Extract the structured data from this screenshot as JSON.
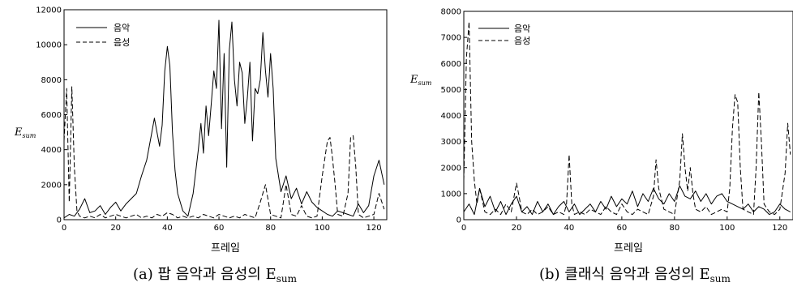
{
  "chart_data": [
    {
      "type": "line",
      "caption": "(a) 팝 음악과 음성의 E",
      "caption_sub": "sum",
      "xlabel": "프레임",
      "ylabel": "E",
      "ylabel_sub": "sum",
      "xlim": [
        0,
        125
      ],
      "ylim": [
        0,
        12000
      ],
      "x_ticks": [
        0,
        20,
        40,
        60,
        80,
        100,
        120
      ],
      "y_ticks": [
        0,
        2000,
        4000,
        6000,
        8000,
        10000,
        12000
      ],
      "legend_position": "top-left",
      "series": [
        {
          "name": "음악",
          "style": "solid",
          "x": [
            0,
            2,
            4,
            6,
            8,
            10,
            12,
            14,
            16,
            18,
            20,
            22,
            24,
            26,
            28,
            30,
            32,
            34,
            35,
            36,
            37,
            38,
            39,
            40,
            41,
            42,
            43,
            44,
            46,
            48,
            50,
            52,
            53,
            54,
            55,
            56,
            57,
            58,
            59,
            60,
            61,
            62,
            63,
            64,
            65,
            66,
            67,
            68,
            69,
            70,
            71,
            72,
            73,
            74,
            75,
            76,
            77,
            78,
            79,
            80,
            81,
            82,
            84,
            86,
            88,
            90,
            92,
            94,
            96,
            98,
            100,
            102,
            104,
            106,
            108,
            110,
            112,
            114,
            116,
            118,
            120,
            122,
            124
          ],
          "y": [
            100,
            300,
            200,
            600,
            1200,
            400,
            500,
            800,
            300,
            700,
            1000,
            500,
            900,
            1200,
            1500,
            2500,
            3400,
            5000,
            5800,
            5000,
            4200,
            5400,
            8500,
            9900,
            8800,
            5000,
            2800,
            1500,
            500,
            200,
            1500,
            4000,
            5500,
            3800,
            6500,
            4800,
            6600,
            8500,
            7500,
            11400,
            5200,
            9500,
            3000,
            9700,
            11300,
            8000,
            6500,
            9000,
            8400,
            5500,
            7000,
            9000,
            4500,
            7500,
            7200,
            8000,
            10700,
            8500,
            7000,
            9500,
            7500,
            3500,
            1600,
            2500,
            1200,
            1800,
            900,
            1600,
            1000,
            700,
            500,
            300,
            200,
            500,
            400,
            300,
            200,
            900,
            400,
            800,
            2500,
            3400,
            2000
          ]
        },
        {
          "name": "음성",
          "style": "dashed",
          "x": [
            0,
            1,
            2,
            3,
            4,
            5,
            6,
            8,
            10,
            12,
            14,
            16,
            18,
            20,
            22,
            24,
            26,
            28,
            30,
            32,
            34,
            36,
            38,
            40,
            42,
            44,
            46,
            48,
            50,
            52,
            54,
            56,
            58,
            60,
            62,
            64,
            66,
            68,
            70,
            72,
            74,
            76,
            78,
            80,
            82,
            84,
            86,
            88,
            90,
            92,
            94,
            96,
            98,
            100,
            102,
            103,
            104,
            105,
            106,
            108,
            110,
            111,
            112,
            113,
            114,
            116,
            118,
            120,
            122,
            124
          ],
          "y": [
            4500,
            7500,
            1000,
            7600,
            3000,
            500,
            200,
            100,
            200,
            100,
            300,
            100,
            200,
            300,
            200,
            100,
            200,
            300,
            100,
            200,
            100,
            300,
            200,
            400,
            300,
            100,
            200,
            100,
            200,
            100,
            300,
            200,
            100,
            300,
            200,
            100,
            200,
            100,
            300,
            200,
            100,
            1000,
            2000,
            300,
            200,
            100,
            2000,
            300,
            200,
            800,
            200,
            100,
            200,
            2500,
            4500,
            4700,
            3500,
            2000,
            300,
            200,
            1500,
            4700,
            4800,
            3000,
            300,
            100,
            200,
            300,
            1500,
            600
          ]
        }
      ]
    },
    {
      "type": "line",
      "caption": "(b) 클래식 음악과 음성의 E",
      "caption_sub": "sum",
      "xlabel": "프레임",
      "ylabel": "E",
      "ylabel_sub": "sum",
      "xlim": [
        0,
        125
      ],
      "ylim": [
        0,
        8000
      ],
      "x_ticks": [
        0,
        20,
        40,
        60,
        80,
        100,
        120
      ],
      "y_ticks": [
        0,
        1000,
        2000,
        3000,
        4000,
        5000,
        6000,
        7000,
        8000
      ],
      "legend_position": "top-left",
      "series": [
        {
          "name": "음악",
          "style": "solid",
          "x": [
            0,
            2,
            4,
            6,
            8,
            10,
            12,
            14,
            16,
            18,
            20,
            22,
            24,
            26,
            28,
            30,
            32,
            34,
            36,
            38,
            40,
            42,
            44,
            46,
            48,
            50,
            52,
            54,
            56,
            58,
            60,
            62,
            64,
            66,
            68,
            70,
            72,
            74,
            76,
            78,
            80,
            82,
            84,
            86,
            88,
            90,
            92,
            94,
            96,
            98,
            100,
            102,
            104,
            106,
            108,
            110,
            112,
            114,
            116,
            118,
            120,
            122,
            124
          ],
          "y": [
            300,
            600,
            200,
            1200,
            500,
            900,
            300,
            700,
            200,
            600,
            900,
            300,
            500,
            200,
            700,
            300,
            600,
            200,
            500,
            700,
            300,
            600,
            200,
            400,
            600,
            300,
            700,
            400,
            900,
            500,
            800,
            600,
            1100,
            500,
            1000,
            700,
            1200,
            800,
            600,
            1000,
            700,
            1300,
            900,
            800,
            1100,
            700,
            1000,
            600,
            900,
            1000,
            700,
            600,
            500,
            400,
            600,
            300,
            500,
            400,
            200,
            300,
            600,
            400,
            300
          ]
        },
        {
          "name": "음성",
          "style": "dashed",
          "x": [
            0,
            1,
            2,
            3,
            4,
            5,
            6,
            8,
            10,
            12,
            14,
            16,
            18,
            20,
            21,
            22,
            24,
            26,
            28,
            30,
            32,
            34,
            36,
            38,
            39,
            40,
            41,
            42,
            44,
            46,
            48,
            50,
            52,
            54,
            56,
            58,
            60,
            62,
            64,
            66,
            68,
            70,
            72,
            73,
            74,
            76,
            78,
            80,
            82,
            83,
            84,
            85,
            86,
            87,
            88,
            90,
            92,
            94,
            96,
            98,
            100,
            101,
            102,
            103,
            104,
            105,
            106,
            108,
            110,
            111,
            112,
            113,
            114,
            116,
            118,
            120,
            122,
            123,
            124
          ],
          "y": [
            1500,
            6200,
            7600,
            3000,
            1500,
            600,
            1200,
            300,
            200,
            400,
            200,
            600,
            300,
            1400,
            900,
            300,
            200,
            400,
            200,
            300,
            500,
            200,
            300,
            200,
            600,
            2500,
            600,
            200,
            300,
            200,
            400,
            300,
            200,
            500,
            300,
            200,
            600,
            300,
            200,
            400,
            300,
            200,
            900,
            2300,
            1200,
            400,
            300,
            200,
            1500,
            3300,
            2000,
            1100,
            2000,
            1000,
            400,
            300,
            500,
            200,
            300,
            400,
            300,
            1200,
            3500,
            4800,
            4500,
            2000,
            400,
            300,
            200,
            2000,
            4900,
            3000,
            600,
            300,
            200,
            400,
            1800,
            3700,
            2500
          ]
        }
      ]
    }
  ]
}
